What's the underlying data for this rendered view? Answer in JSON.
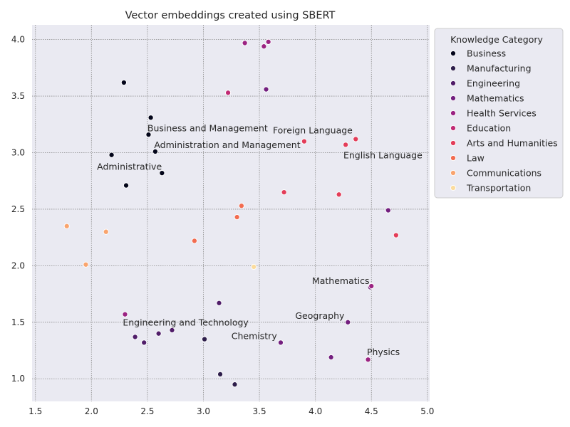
{
  "chart_data": {
    "type": "scatter",
    "title": "Vector embeddings created using SBERT",
    "xlabel": "",
    "ylabel": "",
    "xlim": [
      1.47,
      5.02
    ],
    "ylim": [
      0.8,
      4.13
    ],
    "xticks": [
      1.5,
      2.0,
      2.5,
      3.0,
      3.5,
      4.0,
      4.5,
      5.0
    ],
    "xtick_labels": [
      "1.5",
      "2.0",
      "2.5",
      "3.0",
      "3.5",
      "4.0",
      "4.5",
      "5.0"
    ],
    "yticks": [
      1.0,
      1.5,
      2.0,
      2.5,
      3.0,
      3.5,
      4.0
    ],
    "ytick_labels": [
      "1.0",
      "1.5",
      "2.0",
      "2.5",
      "3.0",
      "3.5",
      "4.0"
    ],
    "grid": true,
    "legend": {
      "title": "Knowledge Category",
      "placement": "outside-right-top"
    },
    "series": [
      {
        "name": "Business",
        "color": "#03051a",
        "points": [
          [
            2.29,
            3.62
          ],
          [
            2.53,
            3.31
          ],
          [
            2.51,
            3.16
          ],
          [
            2.57,
            3.01
          ],
          [
            2.18,
            2.98
          ],
          [
            2.63,
            2.82
          ],
          [
            2.31,
            2.71
          ]
        ]
      },
      {
        "name": "Manufacturing",
        "color": "#2e1e4b",
        "points": [
          [
            3.01,
            1.35
          ],
          [
            3.15,
            1.04
          ],
          [
            3.28,
            0.95
          ]
        ]
      },
      {
        "name": "Engineering",
        "color": "#501d69",
        "points": [
          [
            3.14,
            1.67
          ],
          [
            2.39,
            1.37
          ],
          [
            2.47,
            1.32
          ],
          [
            2.6,
            1.4
          ],
          [
            2.72,
            1.43
          ]
        ]
      },
      {
        "name": "Mathematics",
        "color": "#731f7f",
        "points": [
          [
            3.56,
            3.56
          ],
          [
            3.69,
            1.32
          ],
          [
            4.14,
            1.19
          ],
          [
            4.29,
            1.5
          ],
          [
            4.49,
            1.81
          ],
          [
            4.65,
            2.49
          ]
        ]
      },
      {
        "name": "Health Services",
        "color": "#9b2382",
        "points": [
          [
            3.37,
            3.97
          ],
          [
            3.54,
            3.94
          ],
          [
            3.58,
            3.98
          ],
          [
            2.3,
            1.57
          ],
          [
            4.47,
            1.17
          ],
          [
            4.5,
            1.82
          ]
        ]
      },
      {
        "name": "Education",
        "color": "#c12b74",
        "points": [
          [
            3.22,
            3.53
          ]
        ]
      },
      {
        "name": "Arts and Humanities",
        "color": "#e33d59",
        "points": [
          [
            3.9,
            3.1
          ],
          [
            4.27,
            3.07
          ],
          [
            4.36,
            3.12
          ],
          [
            3.72,
            2.65
          ],
          [
            4.21,
            2.63
          ],
          [
            4.72,
            2.27
          ]
        ]
      },
      {
        "name": "Law",
        "color": "#f26c50",
        "points": [
          [
            3.34,
            2.53
          ],
          [
            3.3,
            2.43
          ],
          [
            2.92,
            2.22
          ]
        ]
      },
      {
        "name": "Communications",
        "color": "#f9a46e",
        "points": [
          [
            1.78,
            2.35
          ],
          [
            2.13,
            2.3
          ],
          [
            1.95,
            2.01
          ]
        ]
      },
      {
        "name": "Transportation",
        "color": "#fbdc9e",
        "points": [
          [
            3.45,
            1.99
          ]
        ]
      }
    ],
    "annotations": [
      {
        "text": "Business and Management",
        "x": 2.5,
        "y": 3.19
      },
      {
        "text": "Administration and Management",
        "x": 2.56,
        "y": 3.04
      },
      {
        "text": "Administrative",
        "x": 2.05,
        "y": 2.85
      },
      {
        "text": "Foreign Language",
        "x": 3.62,
        "y": 3.17
      },
      {
        "text": "English Language",
        "x": 4.25,
        "y": 2.95
      },
      {
        "text": "Mathematics",
        "x": 3.97,
        "y": 1.84
      },
      {
        "text": "Geography",
        "x": 3.82,
        "y": 1.53
      },
      {
        "text": "Engineering and Technology",
        "x": 2.28,
        "y": 1.47
      },
      {
        "text": "Chemistry",
        "x": 3.25,
        "y": 1.35
      },
      {
        "text": "Physics",
        "x": 4.46,
        "y": 1.21
      }
    ]
  }
}
